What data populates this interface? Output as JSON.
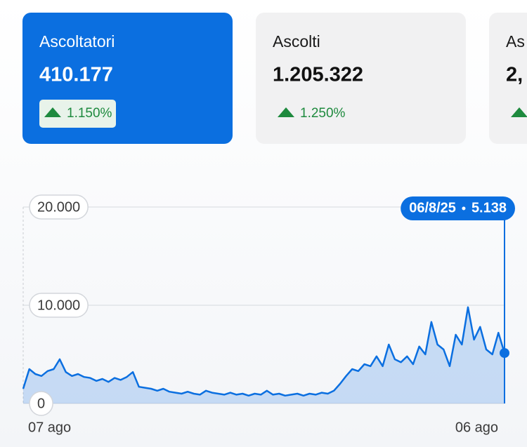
{
  "cards": [
    {
      "label": "Ascoltatori",
      "value": "410.177",
      "change": "1.150%"
    },
    {
      "label": "Ascolti",
      "value": "1.205.322",
      "change": "1.250%"
    },
    {
      "label": "As",
      "value": "2,"
    }
  ],
  "chart_data": {
    "type": "line",
    "categories": [
      "07 ago",
      null,
      null,
      null,
      null,
      null,
      null,
      null,
      null,
      null,
      null,
      null,
      null,
      null,
      null,
      null,
      null,
      null,
      null,
      null,
      null,
      null,
      null,
      null,
      null,
      null,
      null,
      null,
      null,
      null,
      null,
      null,
      null,
      null,
      null,
      null,
      null,
      null,
      null,
      null,
      null,
      null,
      null,
      null,
      null,
      null,
      null,
      null,
      null,
      null,
      null,
      null,
      null,
      null,
      null,
      null,
      null,
      null,
      null,
      null,
      null,
      null,
      null,
      null,
      null,
      null,
      null,
      null,
      null,
      null,
      null,
      null,
      null,
      null,
      null,
      null,
      null,
      null,
      null,
      "06 ago"
    ],
    "values": [
      1500,
      3500,
      3000,
      2800,
      3300,
      3500,
      4500,
      3200,
      2800,
      3000,
      2700,
      2600,
      2300,
      2500,
      2200,
      2600,
      2400,
      2700,
      3200,
      1700,
      1600,
      1500,
      1300,
      1500,
      1200,
      1100,
      1000,
      1200,
      1000,
      900,
      1300,
      1100,
      1000,
      900,
      1100,
      900,
      1000,
      800,
      1000,
      900,
      1300,
      900,
      1000,
      800,
      900,
      1000,
      800,
      1000,
      900,
      1100,
      1000,
      1300,
      2000,
      2800,
      3500,
      3300,
      4000,
      3800,
      4800,
      3800,
      6000,
      4500,
      4200,
      4800,
      4000,
      5800,
      5000,
      8300,
      6000,
      5500,
      3800,
      7000,
      6000,
      9800,
      6500,
      7800,
      5500,
      5000,
      7200,
      5138
    ],
    "color": "#0b6fe0",
    "ylim": [
      0,
      20000
    ],
    "yticks": [
      0,
      {
        "value": 10000,
        "label": "10.000"
      },
      {
        "value": 20000,
        "label": "20.000"
      }
    ],
    "grid": true,
    "highlight": {
      "date": "06/8/25",
      "label": "5.138"
    }
  }
}
